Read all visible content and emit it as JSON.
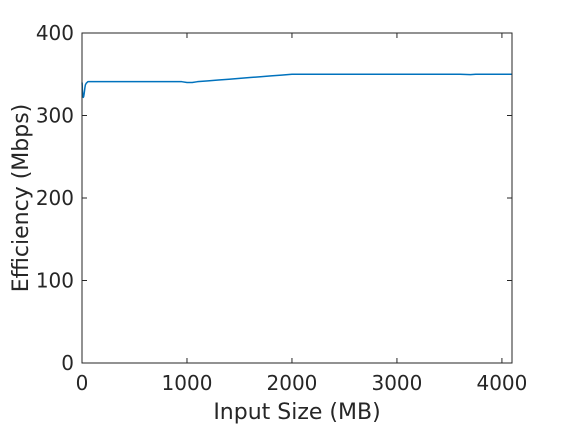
{
  "chart_data": {
    "type": "line",
    "title": "",
    "xlabel": "Input Size (MB)",
    "ylabel": "Efficiency (Mbps)",
    "xlim": [
      0,
      4096
    ],
    "ylim": [
      0,
      400
    ],
    "xticks": [
      0,
      1000,
      2000,
      3000,
      4000
    ],
    "yticks": [
      0,
      100,
      200,
      300,
      400
    ],
    "grid": false,
    "legend": "none",
    "series": [
      {
        "color": "#0072BD",
        "x": [
          1,
          4,
          8,
          12,
          16,
          20,
          24,
          28,
          32,
          40,
          48,
          56,
          64,
          80,
          100,
          150,
          200,
          300,
          400,
          500,
          600,
          700,
          800,
          900,
          950,
          1000,
          1050,
          1100,
          1200,
          1300,
          1400,
          1500,
          1600,
          1700,
          1800,
          1900,
          2000,
          2100,
          2200,
          2400,
          2600,
          2800,
          3000,
          3200,
          3400,
          3600,
          3700,
          3750,
          3800,
          3900,
          4000,
          4096
        ],
        "y": [
          340,
          330,
          324,
          322,
          323,
          326,
          330,
          334,
          337,
          339,
          340,
          341,
          341,
          341,
          341,
          341,
          341,
          341,
          341,
          341,
          341,
          341,
          341,
          341,
          341,
          340,
          340,
          341,
          342,
          343,
          344,
          345,
          346,
          347,
          348,
          349,
          350,
          350,
          350,
          350,
          350,
          350,
          350,
          350,
          350,
          350,
          349.5,
          350,
          350,
          350,
          350,
          350
        ]
      }
    ]
  }
}
